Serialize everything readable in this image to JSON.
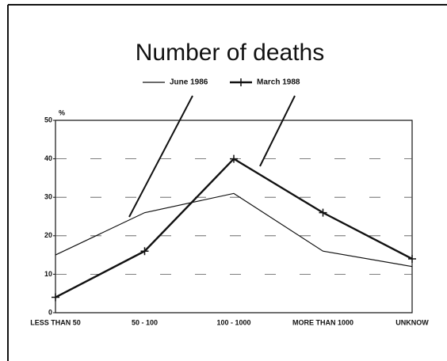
{
  "chart_data": {
    "type": "line",
    "title": "Number of deaths",
    "ylabel": "%",
    "categories": [
      "LESS THAN 50",
      "50 - 100",
      "100 - 1000",
      "MORE THAN 1000",
      "UNKNOW"
    ],
    "series": [
      {
        "name": "June 1986",
        "color": "#111111",
        "values": [
          15,
          26,
          31,
          16,
          12
        ]
      },
      {
        "name": "March 1988",
        "color": "#111111",
        "marker": "+",
        "values": [
          4,
          16,
          40,
          26,
          14
        ]
      }
    ],
    "ylim": [
      0,
      50
    ],
    "yticks": [
      0,
      10,
      20,
      30,
      40,
      50
    ],
    "grid": true
  }
}
